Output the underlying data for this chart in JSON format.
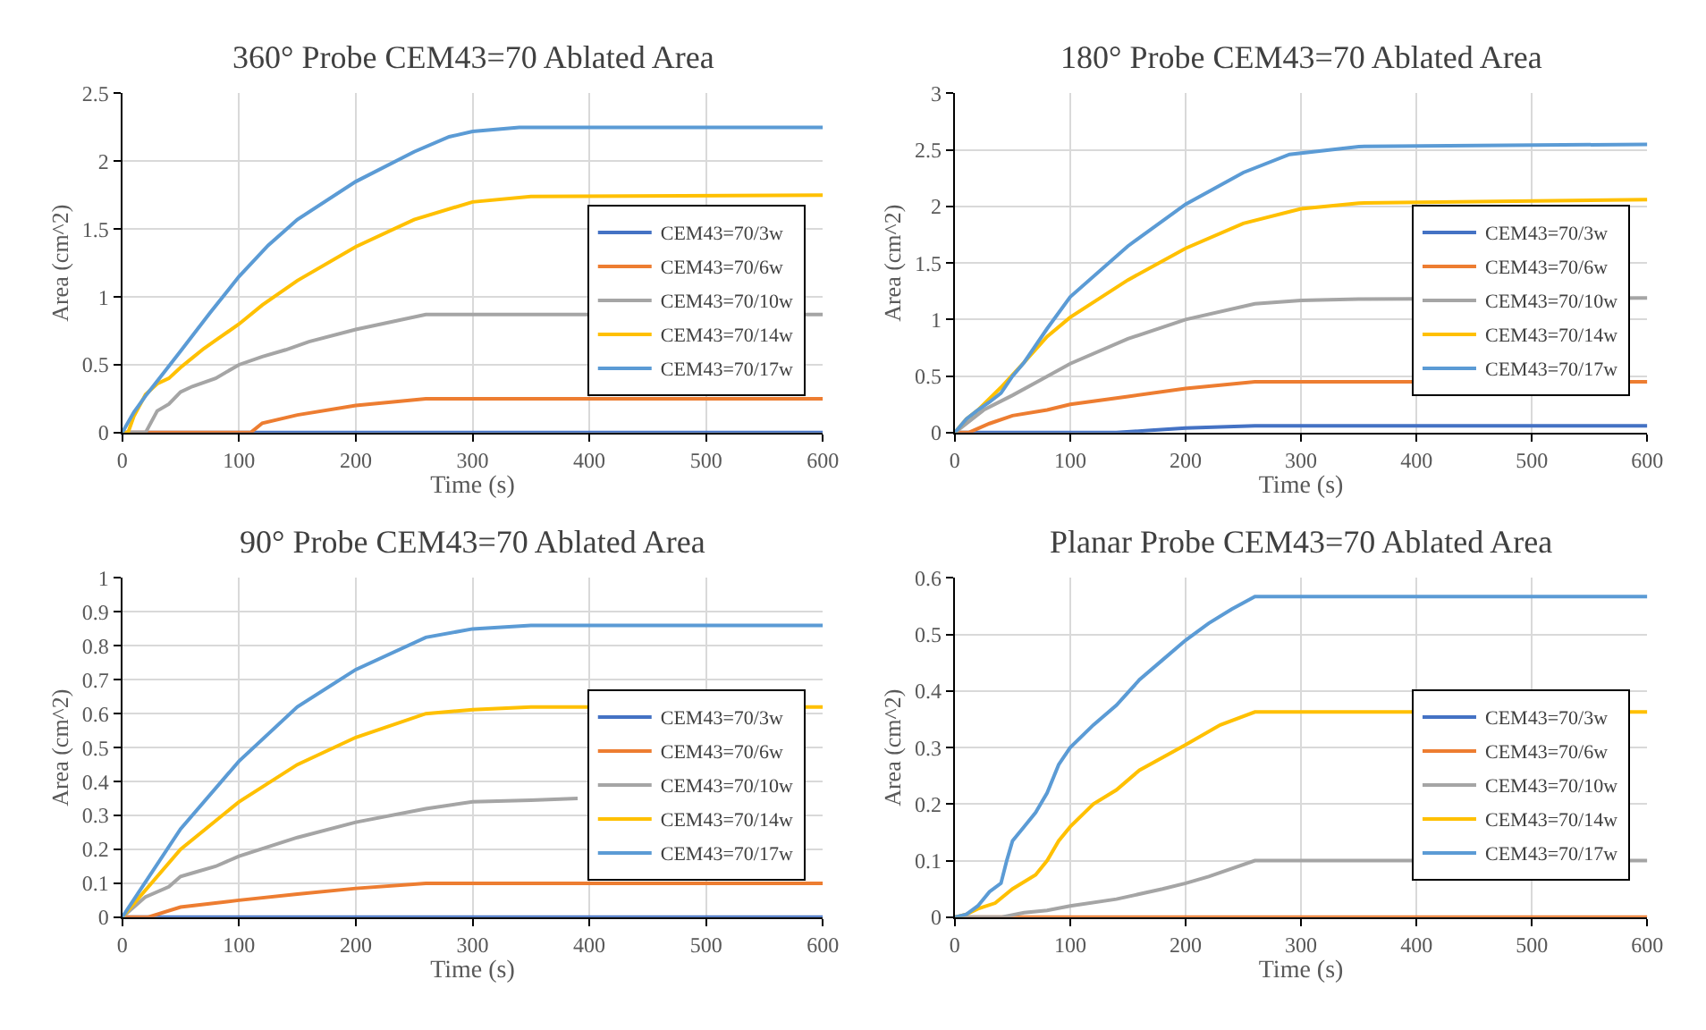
{
  "chart_data": [
    {
      "type": "line",
      "title": "360° Probe CEM43=70 Ablated Area",
      "xlabel": "Time (s)",
      "ylabel": "Area (cm^2)",
      "xlim": [
        0,
        600
      ],
      "xticks": [
        0,
        100,
        200,
        300,
        400,
        500,
        600
      ],
      "ylim": [
        0,
        2.5
      ],
      "yticks": [
        0,
        0.5,
        1,
        1.5,
        2,
        2.5
      ],
      "grid": true,
      "legend": "right",
      "series": [
        {
          "name": "CEM43=70/3w",
          "color": "#4472c4",
          "x": [
            0,
            600
          ],
          "values": [
            0,
            0
          ]
        },
        {
          "name": "CEM43=70/6w",
          "color": "#ed7d31",
          "x": [
            0,
            110,
            120,
            150,
            200,
            260,
            600
          ],
          "values": [
            0,
            0,
            0.07,
            0.13,
            0.2,
            0.25,
            0.25
          ]
        },
        {
          "name": "CEM43=70/10w",
          "color": "#a5a5a5",
          "x": [
            0,
            20,
            30,
            40,
            50,
            60,
            80,
            100,
            120,
            140,
            160,
            200,
            260,
            600
          ],
          "values": [
            0,
            0,
            0.16,
            0.21,
            0.3,
            0.34,
            0.4,
            0.5,
            0.56,
            0.61,
            0.67,
            0.76,
            0.87,
            0.87
          ]
        },
        {
          "name": "CEM43=70/14w",
          "color": "#ffc000",
          "x": [
            0,
            5,
            10,
            20,
            30,
            40,
            50,
            60,
            70,
            80,
            100,
            120,
            150,
            200,
            250,
            300,
            350,
            600
          ],
          "values": [
            0,
            0,
            0.12,
            0.28,
            0.36,
            0.4,
            0.48,
            0.55,
            0.62,
            0.68,
            0.8,
            0.94,
            1.12,
            1.37,
            1.57,
            1.7,
            1.74,
            1.75
          ]
        },
        {
          "name": "CEM43=70/17w",
          "color": "#5b9bd5",
          "x": [
            0,
            10,
            20,
            30,
            50,
            75,
            100,
            125,
            150,
            200,
            250,
            280,
            300,
            340,
            600
          ],
          "values": [
            0,
            0.15,
            0.27,
            0.38,
            0.6,
            0.88,
            1.15,
            1.38,
            1.57,
            1.85,
            2.07,
            2.18,
            2.22,
            2.25,
            2.25
          ]
        }
      ]
    },
    {
      "type": "line",
      "title": "180° Probe CEM43=70 Ablated Area",
      "xlabel": "Time (s)",
      "ylabel": "Area (cm^2)",
      "xlim": [
        0,
        600
      ],
      "xticks": [
        0,
        100,
        200,
        300,
        400,
        500,
        600
      ],
      "ylim": [
        0,
        3
      ],
      "yticks": [
        0,
        0.5,
        1,
        1.5,
        2,
        2.5,
        3
      ],
      "grid": true,
      "legend": "right",
      "series": [
        {
          "name": "CEM43=70/3w",
          "color": "#4472c4",
          "x": [
            0,
            140,
            170,
            200,
            260,
            600
          ],
          "values": [
            0,
            0,
            0.02,
            0.04,
            0.06,
            0.06
          ]
        },
        {
          "name": "CEM43=70/6w",
          "color": "#ed7d31",
          "x": [
            0,
            12,
            30,
            50,
            80,
            100,
            150,
            200,
            260,
            600
          ],
          "values": [
            0,
            0,
            0.08,
            0.15,
            0.2,
            0.25,
            0.32,
            0.39,
            0.45,
            0.45
          ]
        },
        {
          "name": "CEM43=70/10w",
          "color": "#a5a5a5",
          "x": [
            0,
            25,
            50,
            75,
            100,
            150,
            200,
            260,
            300,
            350,
            600
          ],
          "values": [
            0,
            0.2,
            0.33,
            0.47,
            0.61,
            0.83,
            1.0,
            1.14,
            1.17,
            1.18,
            1.19
          ]
        },
        {
          "name": "CEM43=70/14w",
          "color": "#ffc000",
          "x": [
            0,
            10,
            20,
            30,
            40,
            60,
            80,
            100,
            150,
            200,
            250,
            300,
            350,
            600
          ],
          "values": [
            0,
            0.12,
            0.2,
            0.3,
            0.4,
            0.62,
            0.85,
            1.02,
            1.35,
            1.63,
            1.85,
            1.98,
            2.03,
            2.06
          ]
        },
        {
          "name": "CEM43=70/17w",
          "color": "#5b9bd5",
          "x": [
            0,
            10,
            20,
            30,
            40,
            50,
            60,
            80,
            100,
            150,
            200,
            250,
            290,
            350,
            600
          ],
          "values": [
            0,
            0.12,
            0.2,
            0.27,
            0.35,
            0.5,
            0.62,
            0.92,
            1.2,
            1.65,
            2.02,
            2.3,
            2.46,
            2.53,
            2.55
          ]
        }
      ]
    },
    {
      "type": "line",
      "title": "90° Probe CEM43=70 Ablated Area",
      "xlabel": "Time (s)",
      "ylabel": "Area (cm^2)",
      "xlim": [
        0,
        600
      ],
      "xticks": [
        0,
        100,
        200,
        300,
        400,
        500,
        600
      ],
      "ylim": [
        0,
        1
      ],
      "yticks": [
        0,
        0.1,
        0.2,
        0.3,
        0.4,
        0.5,
        0.6,
        0.7,
        0.8,
        0.9,
        1
      ],
      "grid": true,
      "legend": "right",
      "series": [
        {
          "name": "CEM43=70/3w",
          "color": "#4472c4",
          "x": [
            0,
            600
          ],
          "values": [
            0,
            0
          ]
        },
        {
          "name": "CEM43=70/6w",
          "color": "#ed7d31",
          "x": [
            0,
            22,
            50,
            100,
            150,
            200,
            260,
            600
          ],
          "values": [
            0,
            0,
            0.03,
            0.05,
            0.068,
            0.085,
            0.1,
            0.1
          ]
        },
        {
          "name": "CEM43=70/10w",
          "color": "#a5a5a5",
          "x": [
            0,
            20,
            40,
            50,
            60,
            80,
            100,
            150,
            200,
            260,
            300,
            350,
            390
          ],
          "values": [
            0,
            0.06,
            0.09,
            0.12,
            0.13,
            0.15,
            0.18,
            0.235,
            0.28,
            0.32,
            0.34,
            0.345,
            0.35
          ]
        },
        {
          "name": "CEM43=70/14w",
          "color": "#ffc000",
          "x": [
            0,
            50,
            100,
            150,
            200,
            260,
            300,
            350,
            600
          ],
          "values": [
            0,
            0.2,
            0.34,
            0.45,
            0.53,
            0.6,
            0.612,
            0.62,
            0.62
          ]
        },
        {
          "name": "CEM43=70/17w",
          "color": "#5b9bd5",
          "x": [
            0,
            50,
            100,
            150,
            200,
            260,
            300,
            350,
            600
          ],
          "values": [
            0,
            0.26,
            0.46,
            0.62,
            0.73,
            0.825,
            0.85,
            0.86,
            0.86
          ]
        }
      ]
    },
    {
      "type": "line",
      "title": "Planar Probe CEM43=70 Ablated Area",
      "xlabel": "Time (s)",
      "ylabel": "Area (cm^2)",
      "xlim": [
        0,
        600
      ],
      "xticks": [
        0,
        100,
        200,
        300,
        400,
        500,
        600
      ],
      "ylim": [
        0,
        0.6
      ],
      "yticks": [
        0,
        0.1,
        0.2,
        0.3,
        0.4,
        0.5,
        0.6
      ],
      "grid": true,
      "legend": "right",
      "series": [
        {
          "name": "CEM43=70/3w",
          "color": "#4472c4",
          "values": [
            null,
            null
          ]
        },
        {
          "name": "CEM43=70/6w",
          "color": "#ed7d31",
          "x": [
            0,
            600
          ],
          "values": [
            0,
            0
          ]
        },
        {
          "name": "CEM43=70/10w",
          "color": "#a5a5a5",
          "x": [
            0,
            40,
            60,
            80,
            100,
            140,
            180,
            200,
            220,
            260,
            600
          ],
          "values": [
            0,
            0,
            0.008,
            0.012,
            0.02,
            0.032,
            0.05,
            0.06,
            0.072,
            0.1,
            0.1
          ]
        },
        {
          "name": "CEM43=70/14w",
          "color": "#ffc000",
          "x": [
            0,
            10,
            20,
            35,
            50,
            70,
            80,
            90,
            100,
            120,
            140,
            160,
            200,
            230,
            260,
            600
          ],
          "values": [
            0,
            0.005,
            0.015,
            0.025,
            0.05,
            0.075,
            0.1,
            0.135,
            0.16,
            0.2,
            0.225,
            0.26,
            0.305,
            0.34,
            0.363,
            0.363
          ]
        },
        {
          "name": "CEM43=70/17w",
          "color": "#5b9bd5",
          "x": [
            0,
            10,
            20,
            30,
            40,
            45,
            50,
            60,
            70,
            80,
            90,
            100,
            120,
            140,
            160,
            180,
            200,
            220,
            240,
            260,
            600
          ],
          "values": [
            0,
            0.005,
            0.02,
            0.045,
            0.06,
            0.1,
            0.135,
            0.16,
            0.185,
            0.22,
            0.27,
            0.3,
            0.34,
            0.375,
            0.42,
            0.455,
            0.49,
            0.52,
            0.545,
            0.567,
            0.567
          ]
        }
      ]
    }
  ]
}
